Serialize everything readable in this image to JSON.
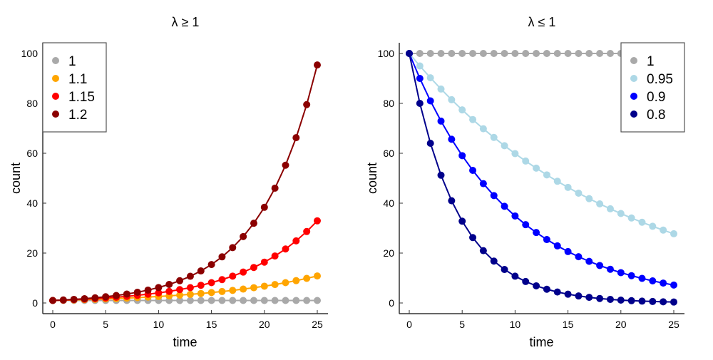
{
  "chart_data": [
    {
      "type": "line",
      "title": "λ ≥ 1",
      "xlabel": "time",
      "ylabel": "count",
      "xlim": [
        -1,
        26
      ],
      "ylim": [
        -4,
        104
      ],
      "xticks": [
        0,
        5,
        10,
        15,
        20,
        25
      ],
      "yticks": [
        0,
        20,
        40,
        60,
        80,
        100
      ],
      "grid": false,
      "legend_position": "top-left",
      "x": [
        0,
        1,
        2,
        3,
        4,
        5,
        6,
        7,
        8,
        9,
        10,
        11,
        12,
        13,
        14,
        15,
        16,
        17,
        18,
        19,
        20,
        21,
        22,
        23,
        24,
        25
      ],
      "series": [
        {
          "name": "1",
          "color": "#a9a9a9",
          "lambda": 1,
          "initial": 1,
          "values": [
            1,
            1,
            1,
            1,
            1,
            1,
            1,
            1,
            1,
            1,
            1,
            1,
            1,
            1,
            1,
            1,
            1,
            1,
            1,
            1,
            1,
            1,
            1,
            1,
            1,
            1
          ]
        },
        {
          "name": "1.1",
          "color": "#ffa500",
          "lambda": 1.1,
          "initial": 1,
          "values": [
            1,
            1.1,
            1.21,
            1.33,
            1.46,
            1.61,
            1.77,
            1.95,
            2.14,
            2.36,
            2.59,
            2.85,
            3.14,
            3.45,
            3.8,
            4.18,
            4.59,
            5.05,
            5.56,
            6.12,
            6.73,
            7.4,
            8.14,
            8.95,
            9.85,
            10.83
          ]
        },
        {
          "name": "1.15",
          "color": "#ff0000",
          "lambda": 1.15,
          "initial": 1,
          "values": [
            1,
            1.15,
            1.32,
            1.52,
            1.75,
            2.01,
            2.31,
            2.66,
            3.06,
            3.52,
            4.05,
            4.65,
            5.35,
            6.15,
            7.08,
            8.14,
            9.36,
            10.76,
            12.38,
            14.23,
            16.37,
            18.82,
            21.64,
            24.89,
            28.63,
            32.92
          ]
        },
        {
          "name": "1.2",
          "color": "#8b0000",
          "lambda": 1.2,
          "initial": 1,
          "values": [
            1,
            1.2,
            1.44,
            1.73,
            2.07,
            2.49,
            2.99,
            3.58,
            4.3,
            5.16,
            6.19,
            7.43,
            8.92,
            10.7,
            12.84,
            15.41,
            18.49,
            22.19,
            26.62,
            31.95,
            38.34,
            46.01,
            55.21,
            66.25,
            79.5,
            95.4
          ]
        }
      ]
    },
    {
      "type": "line",
      "title": "λ ≤ 1",
      "xlabel": "time",
      "ylabel": "count",
      "xlim": [
        -1,
        26
      ],
      "ylim": [
        -4,
        104
      ],
      "xticks": [
        0,
        5,
        10,
        15,
        20,
        25
      ],
      "yticks": [
        0,
        20,
        40,
        60,
        80,
        100
      ],
      "grid": false,
      "legend_position": "top-right",
      "x": [
        0,
        1,
        2,
        3,
        4,
        5,
        6,
        7,
        8,
        9,
        10,
        11,
        12,
        13,
        14,
        15,
        16,
        17,
        18,
        19,
        20,
        21,
        22,
        23,
        24,
        25
      ],
      "series": [
        {
          "name": "1",
          "color": "#a9a9a9",
          "lambda": 1,
          "initial": 100,
          "values": [
            100,
            100,
            100,
            100,
            100,
            100,
            100,
            100,
            100,
            100,
            100,
            100,
            100,
            100,
            100,
            100,
            100,
            100,
            100,
            100,
            100,
            100,
            100,
            100,
            100,
            100
          ]
        },
        {
          "name": "0.95",
          "color": "#add8e6",
          "lambda": 0.95,
          "initial": 100,
          "values": [
            100,
            95,
            90.25,
            85.74,
            81.45,
            77.38,
            73.51,
            69.83,
            66.34,
            63.02,
            59.87,
            56.88,
            54.04,
            51.33,
            48.77,
            46.33,
            44.01,
            41.81,
            39.72,
            37.74,
            35.85,
            34.06,
            32.35,
            30.74,
            29.2,
            27.74
          ]
        },
        {
          "name": "0.9",
          "color": "#0000ff",
          "lambda": 0.9,
          "initial": 100,
          "values": [
            100,
            90,
            81,
            72.9,
            65.61,
            59.05,
            53.14,
            47.83,
            43.05,
            38.74,
            34.87,
            31.38,
            28.24,
            25.42,
            22.88,
            20.59,
            18.53,
            16.68,
            15.01,
            13.51,
            12.16,
            10.94,
            9.85,
            8.86,
            7.98,
            7.18
          ]
        },
        {
          "name": "0.8",
          "color": "#00008b",
          "lambda": 0.8,
          "initial": 100,
          "values": [
            100,
            80,
            64,
            51.2,
            40.96,
            32.77,
            26.21,
            20.97,
            16.78,
            13.42,
            10.74,
            8.59,
            6.87,
            5.5,
            4.4,
            3.52,
            2.81,
            2.25,
            1.8,
            1.44,
            1.15,
            0.92,
            0.74,
            0.59,
            0.47,
            0.38
          ]
        }
      ]
    }
  ]
}
